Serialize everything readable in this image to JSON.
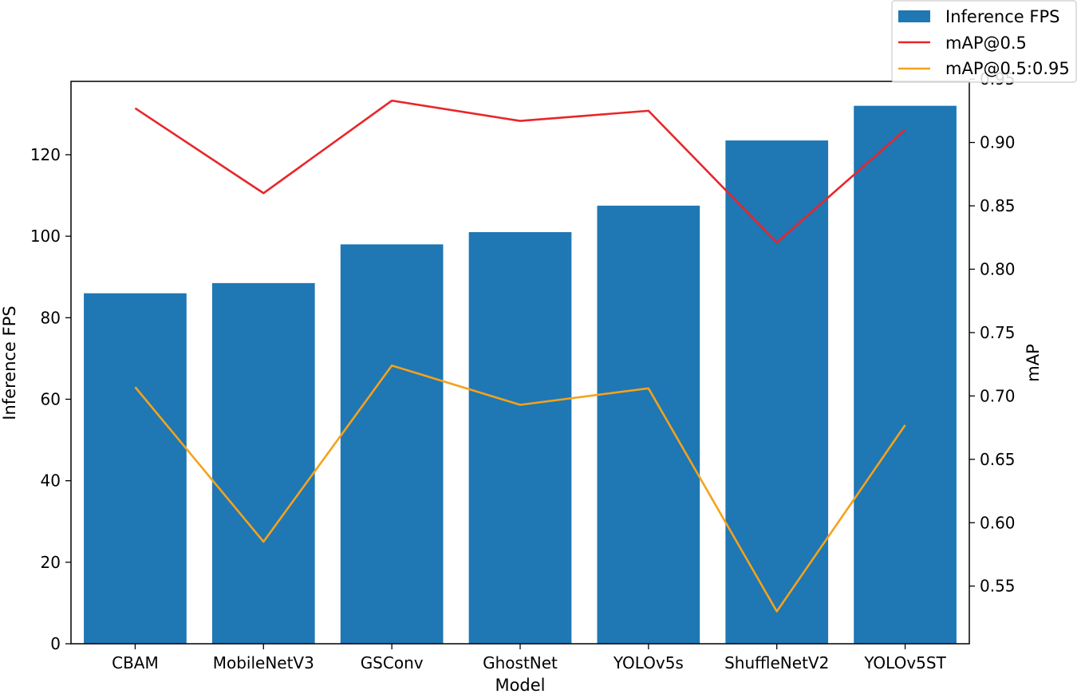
{
  "chart_data": {
    "type": "bar",
    "title": "",
    "xlabel": "Model",
    "ylabel": "Inference FPS",
    "y2label": "mAP",
    "categories": [
      "CBAM",
      "MobileNetV3",
      "GSConv",
      "GhostNet",
      "YOLOv5s",
      "ShuffleNetV2",
      "YOLOv5ST"
    ],
    "ylim": [
      0,
      138
    ],
    "y2lim": [
      0.5045,
      0.9482
    ],
    "yticks": [
      0,
      20,
      40,
      60,
      80,
      100,
      120
    ],
    "y2ticks": [
      0.55,
      0.6,
      0.65,
      0.7,
      0.75,
      0.8,
      0.85,
      0.9,
      0.95
    ],
    "y2tick_labels": [
      "0.55",
      "0.60",
      "0.65",
      "0.70",
      "0.75",
      "0.80",
      "0.85",
      "0.90",
      "0.95"
    ],
    "legend_position": "top-right",
    "series": [
      {
        "name": "Inference FPS",
        "kind": "bar",
        "axis": "left",
        "color": "#1f77b4",
        "values": [
          86.0,
          88.5,
          98.0,
          101.0,
          107.5,
          123.5,
          132.0
        ]
      },
      {
        "name": "mAP@0.5",
        "kind": "line",
        "axis": "right",
        "color": "#e8262a",
        "values": [
          0.927,
          0.86,
          0.933,
          0.917,
          0.925,
          0.821,
          0.91
        ]
      },
      {
        "name": "mAP@0.5:0.95",
        "kind": "line",
        "axis": "right",
        "color": "#f5a21b",
        "values": [
          0.707,
          0.585,
          0.724,
          0.693,
          0.706,
          0.53,
          0.677
        ]
      }
    ]
  }
}
